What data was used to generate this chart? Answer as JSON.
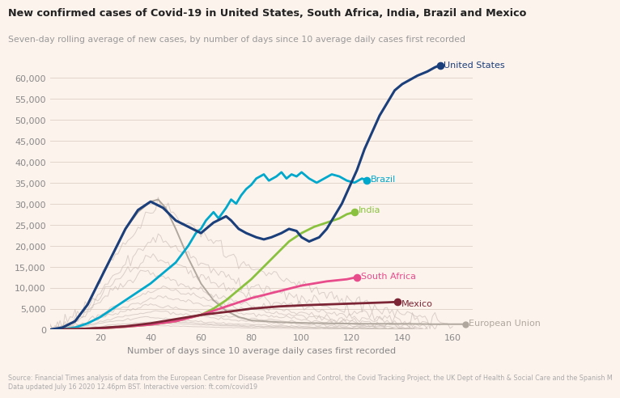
{
  "title": "New confirmed cases of Covid-19 in United States, South Africa, India, Brazil and Mexico",
  "subtitle": "Seven-day rolling average of new cases, by number of days since 10 average daily cases first recorded",
  "xlabel": "Number of days since 10 average daily cases first recorded",
  "source_text": "Source: Financial Times analysis of data from the European Centre for Disease Prevention and Control, the Covid Tracking Project, the UK Dept of Health & Social Care and the Spanish M\nData updated July 16 2020 12.46pm BST. Interactive version: ft.com/covid19",
  "background_color": "#fdf3ed",
  "plot_bg_color": "#fdf3ed",
  "xlim": [
    0,
    168
  ],
  "ylim": [
    0,
    65000
  ],
  "yticks": [
    0,
    5000,
    10000,
    15000,
    20000,
    25000,
    30000,
    35000,
    40000,
    45000,
    50000,
    55000,
    60000
  ],
  "xticks": [
    20,
    40,
    60,
    80,
    100,
    120,
    140,
    160
  ],
  "colors": {
    "united_states": "#1b3f7a",
    "brazil": "#00a8cc",
    "india": "#8ac240",
    "south_africa": "#e84c8b",
    "mexico": "#7b2535",
    "european_union": "#b0a89e",
    "others": "#c8bdb5"
  }
}
